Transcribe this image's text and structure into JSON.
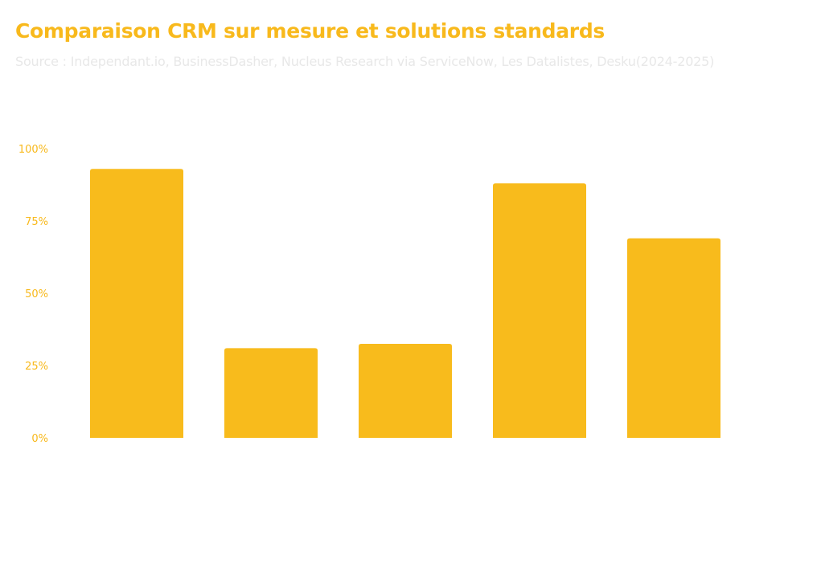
{
  "chart_data": {
    "type": "bar",
    "title": "Comparaison CRM sur mesure et solutions standards",
    "subtitle": "Source : Independant.io, BusinessDasher, Nucleus Research via ServiceNow, Les Datalistes, Desku(2024-2025)",
    "categories": [
      "",
      "",
      "",
      "",
      ""
    ],
    "values": [
      93,
      31,
      32.5,
      88,
      69
    ],
    "ylim": [
      0,
      100
    ],
    "yticks": [
      0,
      25,
      50,
      75,
      100
    ],
    "ytick_labels": [
      "0%",
      "25%",
      "50%",
      "75%",
      "100%"
    ],
    "xlabel": "",
    "ylabel": "",
    "grid": false,
    "bar_color": "#F8BB1C",
    "text_color": "#F8B91C"
  }
}
